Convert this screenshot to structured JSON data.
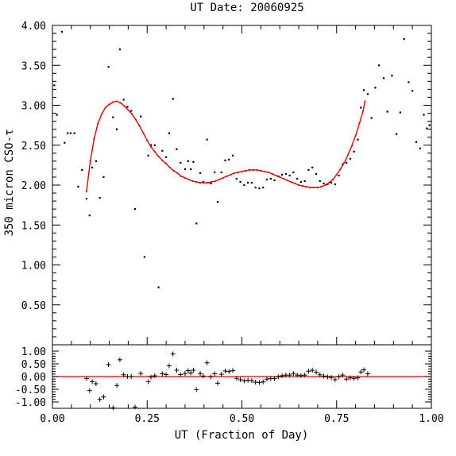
{
  "chart_data": {
    "type": "scatter",
    "title": "UT Date: 20060925",
    "xlabel": "UT (Fraction of Day)",
    "ylabel": "350 micron CSO-τ",
    "xlim": [
      0.0,
      1.0
    ],
    "x_ticks": [
      "0.00",
      "0.25",
      "0.50",
      "0.75",
      "1.00"
    ],
    "grid": false,
    "legend": "none",
    "colors": {
      "data": "#000000",
      "fit": "#e00000",
      "frame": "#000000"
    },
    "main_panel": {
      "ylim": [
        0.0,
        4.0
      ],
      "y_ticks": [
        "0.50",
        "1.00",
        "1.50",
        "2.00",
        "2.50",
        "3.00",
        "3.50",
        "4.00"
      ],
      "points": [
        [
          0.005,
          3.25
        ],
        [
          0.012,
          2.88
        ],
        [
          0.025,
          3.92
        ],
        [
          0.032,
          2.53
        ],
        [
          0.04,
          2.65
        ],
        [
          0.048,
          2.65
        ],
        [
          0.058,
          2.65
        ],
        [
          0.068,
          1.98
        ],
        [
          0.078,
          2.19
        ],
        [
          0.09,
          1.83
        ],
        [
          0.098,
          1.62
        ],
        [
          0.105,
          2.22
        ],
        [
          0.115,
          2.3
        ],
        [
          0.125,
          1.84
        ],
        [
          0.135,
          2.1
        ],
        [
          0.148,
          3.48
        ],
        [
          0.16,
          2.85
        ],
        [
          0.17,
          2.7
        ],
        [
          0.178,
          3.7
        ],
        [
          0.188,
          3.07
        ],
        [
          0.198,
          2.98
        ],
        [
          0.208,
          2.93
        ],
        [
          0.218,
          1.7
        ],
        [
          0.233,
          2.86
        ],
        [
          0.243,
          1.1
        ],
        [
          0.253,
          2.37
        ],
        [
          0.26,
          2.5
        ],
        [
          0.27,
          2.5
        ],
        [
          0.28,
          0.72
        ],
        [
          0.29,
          2.43
        ],
        [
          0.3,
          2.35
        ],
        [
          0.308,
          2.65
        ],
        [
          0.318,
          3.08
        ],
        [
          0.328,
          2.45
        ],
        [
          0.338,
          2.28
        ],
        [
          0.35,
          2.2
        ],
        [
          0.358,
          2.3
        ],
        [
          0.365,
          2.2
        ],
        [
          0.372,
          2.29
        ],
        [
          0.38,
          1.52
        ],
        [
          0.39,
          2.15
        ],
        [
          0.398,
          2.04
        ],
        [
          0.408,
          2.57
        ],
        [
          0.418,
          2.02
        ],
        [
          0.428,
          2.16
        ],
        [
          0.436,
          1.79
        ],
        [
          0.446,
          2.16
        ],
        [
          0.456,
          2.31
        ],
        [
          0.466,
          2.32
        ],
        [
          0.476,
          2.37
        ],
        [
          0.486,
          2.08
        ],
        [
          0.496,
          2.04
        ],
        [
          0.506,
          2.0
        ],
        [
          0.516,
          2.03
        ],
        [
          0.526,
          2.03
        ],
        [
          0.536,
          1.97
        ],
        [
          0.546,
          1.96
        ],
        [
          0.556,
          1.97
        ],
        [
          0.566,
          2.07
        ],
        [
          0.576,
          2.08
        ],
        [
          0.586,
          2.06
        ],
        [
          0.596,
          2.11
        ],
        [
          0.606,
          2.13
        ],
        [
          0.616,
          2.14
        ],
        [
          0.626,
          2.12
        ],
        [
          0.636,
          2.16
        ],
        [
          0.646,
          2.08
        ],
        [
          0.656,
          2.04
        ],
        [
          0.666,
          2.05
        ],
        [
          0.676,
          2.19
        ],
        [
          0.686,
          2.22
        ],
        [
          0.696,
          2.14
        ],
        [
          0.706,
          2.05
        ],
        [
          0.716,
          2.02
        ],
        [
          0.726,
          2.01
        ],
        [
          0.736,
          2.03
        ],
        [
          0.746,
          2.01
        ],
        [
          0.756,
          2.12
        ],
        [
          0.766,
          2.26
        ],
        [
          0.776,
          2.28
        ],
        [
          0.786,
          2.33
        ],
        [
          0.796,
          2.42
        ],
        [
          0.806,
          2.57
        ],
        [
          0.814,
          2.97
        ],
        [
          0.822,
          3.19
        ],
        [
          0.832,
          3.14
        ],
        [
          0.842,
          2.84
        ],
        [
          0.852,
          3.22
        ],
        [
          0.862,
          3.5
        ],
        [
          0.874,
          3.34
        ],
        [
          0.884,
          2.92
        ],
        [
          0.896,
          3.37
        ],
        [
          0.908,
          2.64
        ],
        [
          0.918,
          2.91
        ],
        [
          0.928,
          3.83
        ],
        [
          0.94,
          3.29
        ],
        [
          0.95,
          3.18
        ],
        [
          0.96,
          2.54
        ],
        [
          0.97,
          2.46
        ],
        [
          0.98,
          2.88
        ],
        [
          0.988,
          2.71
        ],
        [
          0.995,
          2.75
        ]
      ],
      "fit_curve": [
        [
          0.09,
          1.92
        ],
        [
          0.1,
          2.3
        ],
        [
          0.11,
          2.58
        ],
        [
          0.12,
          2.77
        ],
        [
          0.13,
          2.89
        ],
        [
          0.14,
          2.97
        ],
        [
          0.15,
          3.01
        ],
        [
          0.16,
          3.04
        ],
        [
          0.17,
          3.05
        ],
        [
          0.18,
          3.03
        ],
        [
          0.19,
          2.99
        ],
        [
          0.2,
          2.94
        ],
        [
          0.21,
          2.89
        ],
        [
          0.22,
          2.82
        ],
        [
          0.23,
          2.74
        ],
        [
          0.24,
          2.65
        ],
        [
          0.25,
          2.56
        ],
        [
          0.26,
          2.48
        ],
        [
          0.27,
          2.42
        ],
        [
          0.28,
          2.36
        ],
        [
          0.29,
          2.31
        ],
        [
          0.3,
          2.27
        ],
        [
          0.31,
          2.22
        ],
        [
          0.32,
          2.18
        ],
        [
          0.33,
          2.15
        ],
        [
          0.34,
          2.11
        ],
        [
          0.35,
          2.09
        ],
        [
          0.36,
          2.07
        ],
        [
          0.37,
          2.05
        ],
        [
          0.38,
          2.04
        ],
        [
          0.39,
          2.03
        ],
        [
          0.4,
          2.03
        ],
        [
          0.41,
          2.03
        ],
        [
          0.42,
          2.04
        ],
        [
          0.43,
          2.05
        ],
        [
          0.44,
          2.07
        ],
        [
          0.45,
          2.09
        ],
        [
          0.46,
          2.11
        ],
        [
          0.47,
          2.13
        ],
        [
          0.48,
          2.15
        ],
        [
          0.49,
          2.16
        ],
        [
          0.5,
          2.17
        ],
        [
          0.51,
          2.18
        ],
        [
          0.52,
          2.19
        ],
        [
          0.53,
          2.19
        ],
        [
          0.54,
          2.19
        ],
        [
          0.55,
          2.18
        ],
        [
          0.56,
          2.17
        ],
        [
          0.57,
          2.16
        ],
        [
          0.58,
          2.14
        ],
        [
          0.59,
          2.12
        ],
        [
          0.6,
          2.1
        ],
        [
          0.61,
          2.08
        ],
        [
          0.62,
          2.06
        ],
        [
          0.63,
          2.04
        ],
        [
          0.64,
          2.02
        ],
        [
          0.65,
          2.0
        ],
        [
          0.66,
          1.99
        ],
        [
          0.67,
          1.98
        ],
        [
          0.68,
          1.97
        ],
        [
          0.69,
          1.97
        ],
        [
          0.7,
          1.97
        ],
        [
          0.71,
          1.98
        ],
        [
          0.72,
          2.0
        ],
        [
          0.73,
          2.03
        ],
        [
          0.74,
          2.07
        ],
        [
          0.75,
          2.13
        ],
        [
          0.76,
          2.2
        ],
        [
          0.77,
          2.28
        ],
        [
          0.78,
          2.38
        ],
        [
          0.79,
          2.49
        ],
        [
          0.8,
          2.62
        ],
        [
          0.81,
          2.77
        ],
        [
          0.82,
          2.93
        ],
        [
          0.825,
          3.05
        ]
      ]
    },
    "residual_panel": {
      "ylim": [
        -1.25,
        1.25
      ],
      "y_ticks": [
        "1.00",
        "0.50",
        "0.00",
        "-0.50",
        "-1.00"
      ],
      "zero_line": 0.0,
      "points": [
        [
          0.09,
          -0.08
        ],
        [
          0.098,
          -0.55
        ],
        [
          0.105,
          -0.2
        ],
        [
          0.115,
          -0.28
        ],
        [
          0.125,
          -0.9
        ],
        [
          0.135,
          -0.8
        ],
        [
          0.148,
          0.47
        ],
        [
          0.16,
          -1.23
        ],
        [
          0.17,
          -0.35
        ],
        [
          0.178,
          0.66
        ],
        [
          0.188,
          0.07
        ],
        [
          0.198,
          0.0
        ],
        [
          0.208,
          0.0
        ],
        [
          0.218,
          -1.2
        ],
        [
          0.233,
          0.12
        ],
        [
          0.253,
          -0.2
        ],
        [
          0.26,
          -0.02
        ],
        [
          0.27,
          0.03
        ],
        [
          0.29,
          0.11
        ],
        [
          0.3,
          0.08
        ],
        [
          0.308,
          0.42
        ],
        [
          0.318,
          0.89
        ],
        [
          0.328,
          0.25
        ],
        [
          0.338,
          0.08
        ],
        [
          0.35,
          0.12
        ],
        [
          0.358,
          0.23
        ],
        [
          0.365,
          0.14
        ],
        [
          0.372,
          0.25
        ],
        [
          0.38,
          -0.51
        ],
        [
          0.39,
          0.12
        ],
        [
          0.398,
          0.02
        ],
        [
          0.408,
          0.54
        ],
        [
          0.418,
          -0.01
        ],
        [
          0.428,
          0.11
        ],
        [
          0.436,
          -0.26
        ],
        [
          0.446,
          0.09
        ],
        [
          0.456,
          0.22
        ],
        [
          0.466,
          0.2
        ],
        [
          0.476,
          0.24
        ],
        [
          0.486,
          -0.07
        ],
        [
          0.496,
          -0.12
        ],
        [
          0.506,
          -0.17
        ],
        [
          0.516,
          -0.15
        ],
        [
          0.526,
          -0.16
        ],
        [
          0.536,
          -0.22
        ],
        [
          0.546,
          -0.23
        ],
        [
          0.556,
          -0.21
        ],
        [
          0.566,
          -0.1
        ],
        [
          0.576,
          -0.08
        ],
        [
          0.586,
          -0.08
        ],
        [
          0.596,
          -0.01
        ],
        [
          0.606,
          0.03
        ],
        [
          0.616,
          0.06
        ],
        [
          0.626,
          0.06
        ],
        [
          0.636,
          0.12
        ],
        [
          0.646,
          0.06
        ],
        [
          0.656,
          0.04
        ],
        [
          0.666,
          0.06
        ],
        [
          0.676,
          0.21
        ],
        [
          0.686,
          0.25
        ],
        [
          0.696,
          0.17
        ],
        [
          0.706,
          0.07
        ],
        [
          0.716,
          0.02
        ],
        [
          0.726,
          -0.01
        ],
        [
          0.736,
          -0.04
        ],
        [
          0.746,
          -0.12
        ],
        [
          0.756,
          -0.01
        ],
        [
          0.766,
          0.06
        ],
        [
          0.776,
          -0.1
        ],
        [
          0.786,
          -0.05
        ],
        [
          0.796,
          -0.07
        ],
        [
          0.806,
          -0.05
        ],
        [
          0.814,
          0.18
        ],
        [
          0.822,
          0.26
        ],
        [
          0.832,
          0.11
        ]
      ]
    }
  }
}
